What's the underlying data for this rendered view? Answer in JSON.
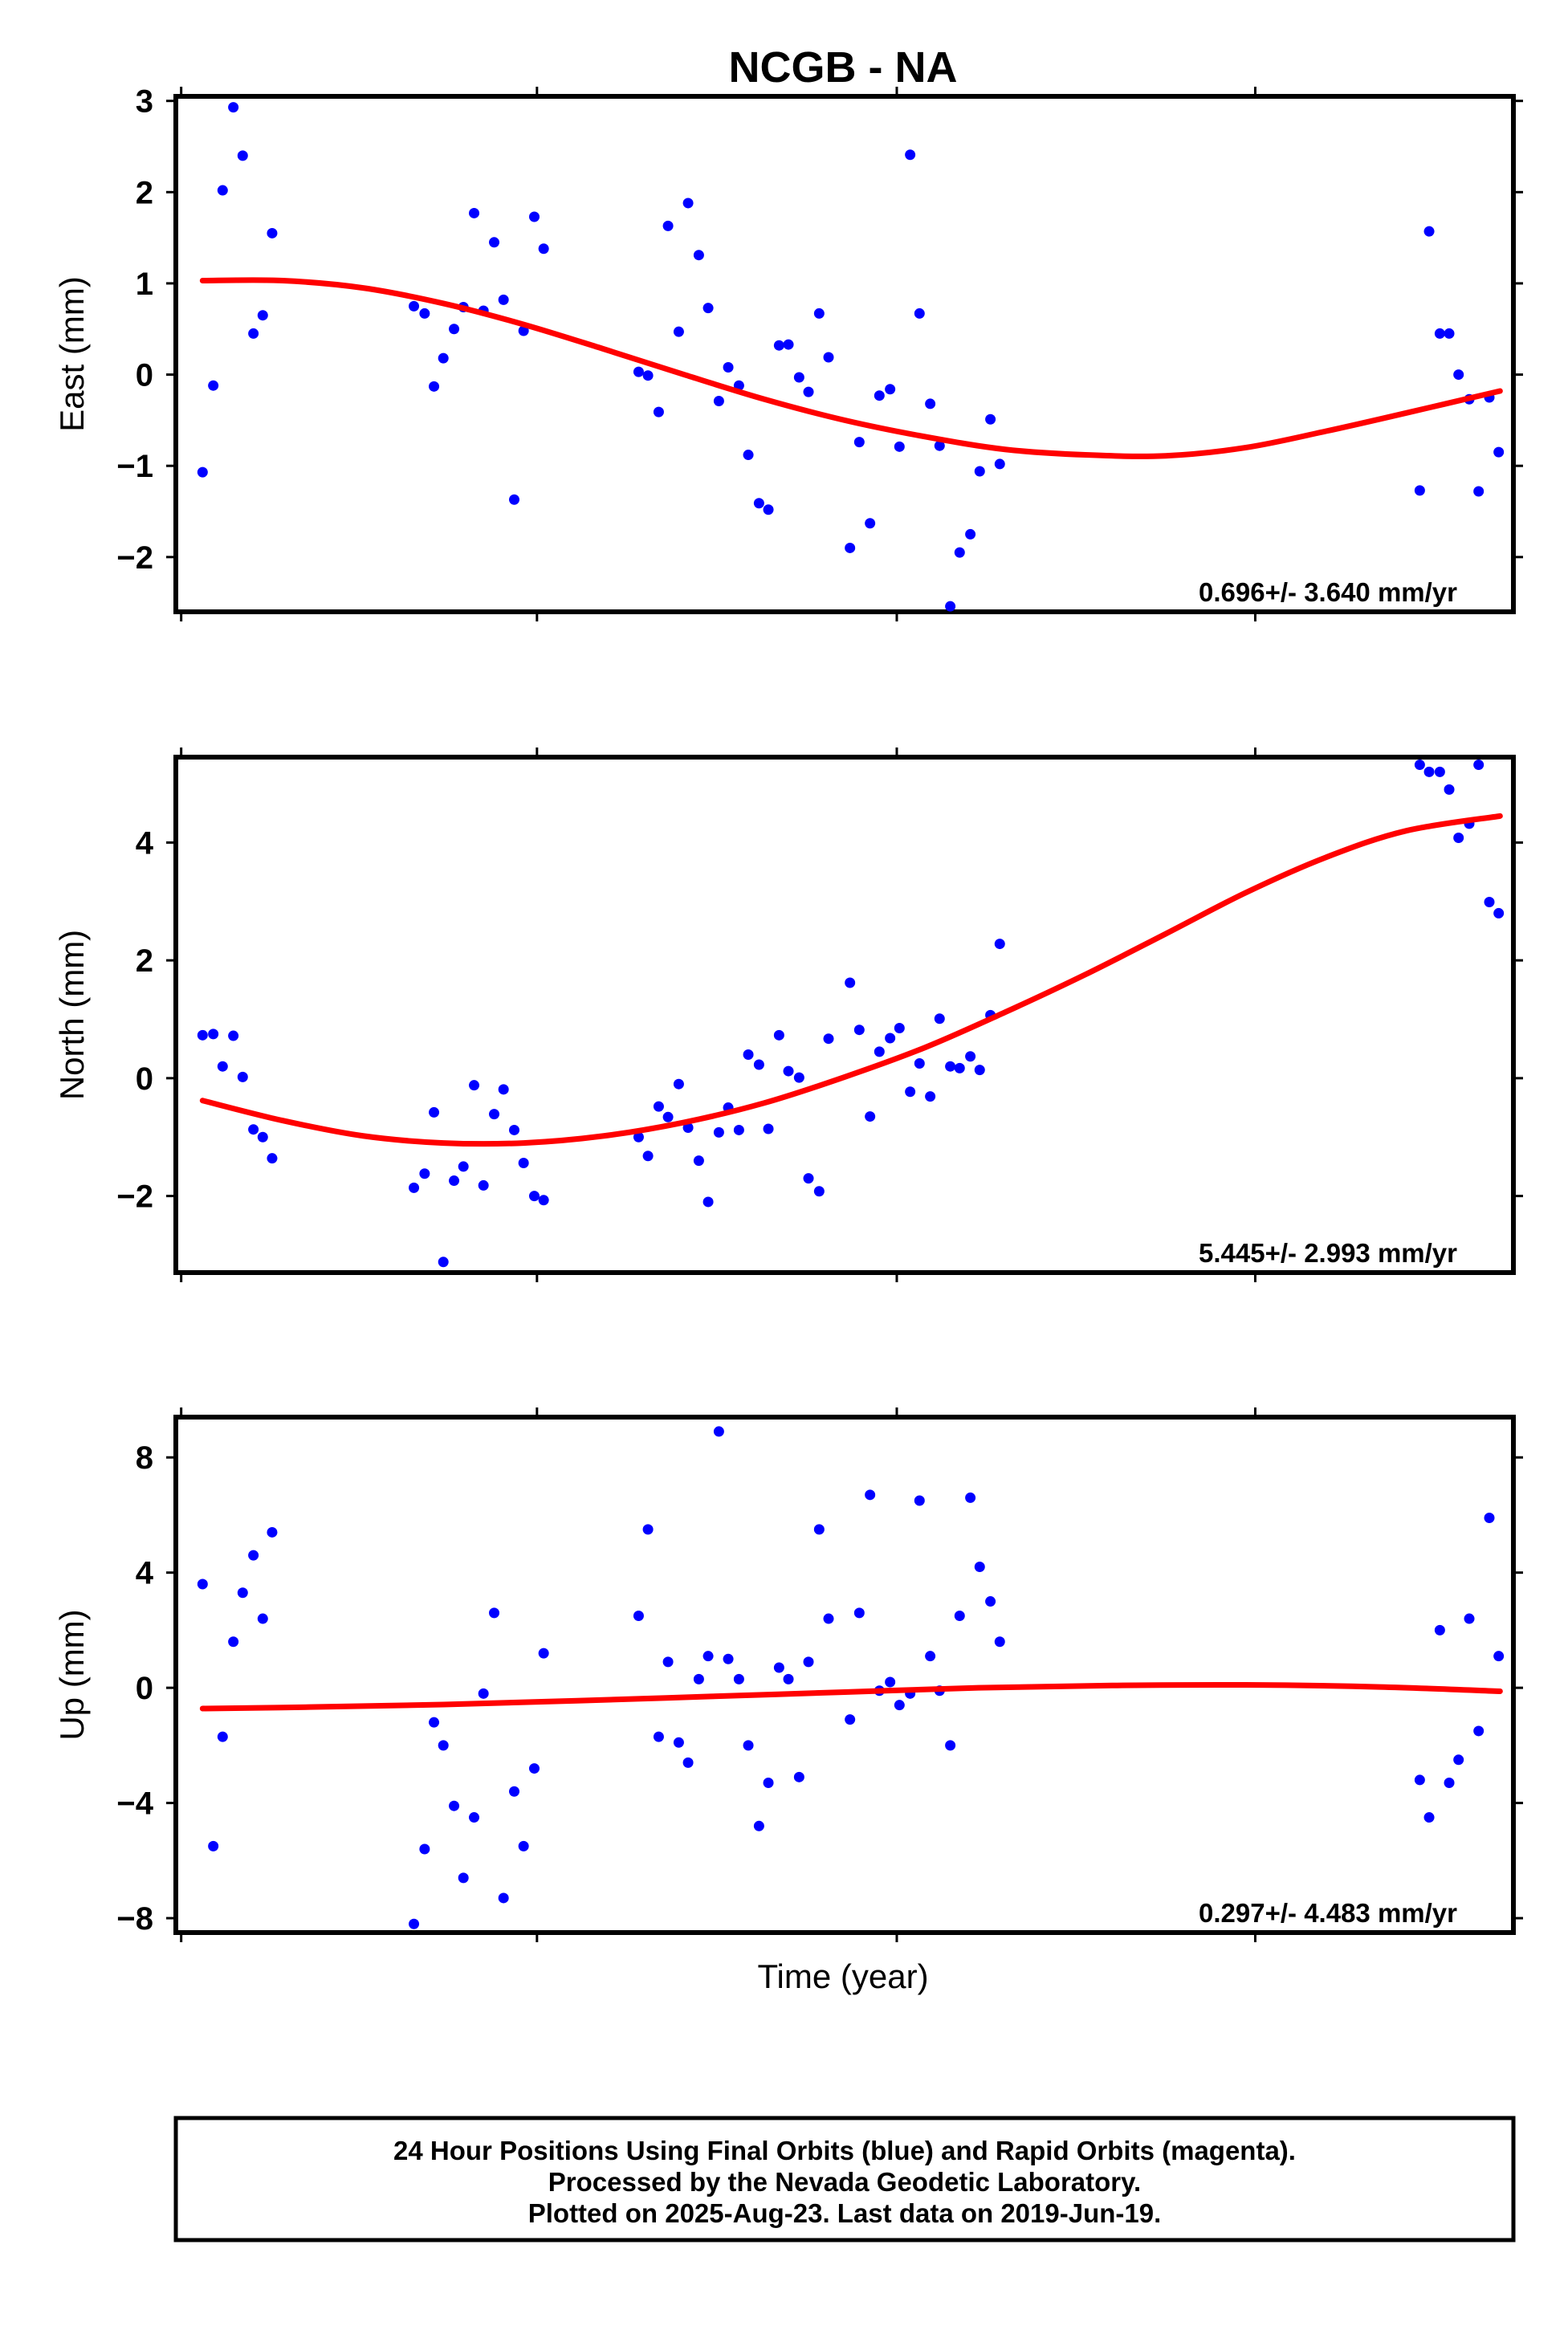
{
  "title": "NCGB - NA",
  "xlabel": "Time (year)",
  "footer": [
    "24 Hour Positions Using Final Orbits (blue) and Rapid Orbits (magenta).",
    "Processed by the Nevada Geodetic Laboratory.",
    "Plotted on 2025-Aug-23. Last data on 2019-Jun-19."
  ],
  "colors": {
    "points": "#0000ff",
    "fit": "#ff0000",
    "frame": "#000000"
  },
  "chart_data": [
    {
      "type": "scatter",
      "ylabel": "East (mm)",
      "ylim": [
        -2.6,
        3.05
      ],
      "yticks": [
        3,
        2,
        1,
        0,
        -1,
        -2
      ],
      "yticklabels": [
        "3",
        "2",
        "1",
        "0",
        "−1",
        "−2"
      ],
      "rate_label": "0.696+/- 3.640 mm/yr",
      "x": [
        0.02,
        0.028,
        0.035,
        0.043,
        0.05,
        0.058,
        0.065,
        0.072,
        0.178,
        0.186,
        0.193,
        0.2,
        0.208,
        0.215,
        0.223,
        0.23,
        0.238,
        0.245,
        0.253,
        0.26,
        0.268,
        0.275,
        0.346,
        0.353,
        0.361,
        0.368,
        0.376,
        0.383,
        0.391,
        0.398,
        0.406,
        0.413,
        0.421,
        0.428,
        0.436,
        0.443,
        0.451,
        0.458,
        0.466,
        0.473,
        0.481,
        0.488,
        0.504,
        0.511,
        0.519,
        0.526,
        0.534,
        0.541,
        0.549,
        0.556,
        0.564,
        0.571,
        0.579,
        0.586,
        0.594,
        0.601,
        0.609,
        0.616,
        0.93,
        0.937,
        0.945,
        0.952,
        0.959,
        0.967,
        0.974,
        0.982,
        0.989
      ],
      "y": [
        -1.07,
        -0.12,
        2.02,
        2.93,
        2.4,
        0.45,
        0.65,
        1.55,
        0.75,
        0.67,
        -0.13,
        0.18,
        0.5,
        0.74,
        1.77,
        0.7,
        1.45,
        0.82,
        -1.37,
        0.48,
        1.73,
        1.38,
        0.03,
        -0.01,
        -0.41,
        1.63,
        0.47,
        1.88,
        1.31,
        0.73,
        -0.29,
        0.08,
        -0.12,
        -0.88,
        -1.41,
        -1.48,
        0.32,
        0.33,
        -0.03,
        -0.19,
        0.67,
        0.19,
        -1.9,
        -0.74,
        -1.63,
        -0.23,
        -0.16,
        -0.79,
        2.41,
        0.67,
        -0.32,
        -0.78,
        -2.54,
        -1.95,
        -1.75,
        -1.06,
        -0.49,
        -0.98,
        -1.27,
        1.57,
        0.45,
        0.45,
        0.0,
        -0.27,
        -1.28,
        -0.25,
        -0.85
      ],
      "fit": {
        "x": [
          0.02,
          0.08,
          0.14,
          0.2,
          0.26,
          0.32,
          0.38,
          0.44,
          0.5,
          0.56,
          0.62,
          0.68,
          0.74,
          0.8,
          0.86,
          0.92,
          0.99
        ],
        "y": [
          1.03,
          1.03,
          0.95,
          0.78,
          0.55,
          0.28,
          0.0,
          -0.27,
          -0.5,
          -0.68,
          -0.82,
          -0.88,
          -0.89,
          -0.8,
          -0.62,
          -0.42,
          -0.18
        ]
      }
    },
    {
      "type": "scatter",
      "ylabel": "North (mm)",
      "ylim": [
        -3.3,
        5.45
      ],
      "yticks": [
        4,
        2,
        0,
        -2
      ],
      "yticklabels": [
        "4",
        "2",
        "0",
        "−2"
      ],
      "rate_label": "5.445+/- 2.993 mm/yr",
      "x": [
        0.02,
        0.028,
        0.035,
        0.043,
        0.05,
        0.058,
        0.065,
        0.072,
        0.178,
        0.186,
        0.193,
        0.2,
        0.208,
        0.215,
        0.223,
        0.23,
        0.238,
        0.245,
        0.253,
        0.26,
        0.268,
        0.275,
        0.346,
        0.353,
        0.361,
        0.368,
        0.376,
        0.383,
        0.391,
        0.398,
        0.406,
        0.413,
        0.421,
        0.428,
        0.436,
        0.443,
        0.451,
        0.458,
        0.466,
        0.473,
        0.481,
        0.488,
        0.504,
        0.511,
        0.519,
        0.526,
        0.534,
        0.541,
        0.549,
        0.556,
        0.564,
        0.571,
        0.579,
        0.586,
        0.594,
        0.601,
        0.609,
        0.616,
        0.93,
        0.937,
        0.945,
        0.952,
        0.959,
        0.967,
        0.974,
        0.982,
        0.989
      ],
      "y": [
        0.73,
        0.75,
        0.2,
        0.72,
        0.02,
        -0.87,
        -1.0,
        -1.36,
        -1.86,
        -1.62,
        -0.58,
        -3.12,
        -1.74,
        -1.5,
        -0.12,
        -1.82,
        -0.61,
        -0.19,
        -0.88,
        -1.44,
        -2.0,
        -2.07,
        -1.0,
        -1.32,
        -0.48,
        -0.66,
        -0.1,
        -0.84,
        -1.4,
        -2.1,
        -0.92,
        -0.5,
        -0.88,
        0.4,
        0.23,
        -0.86,
        0.73,
        0.12,
        0.01,
        -1.7,
        -1.92,
        0.67,
        1.62,
        0.82,
        -0.65,
        0.45,
        0.68,
        0.85,
        -0.23,
        0.25,
        -0.31,
        1.01,
        0.2,
        0.17,
        0.37,
        0.14,
        1.07,
        2.28,
        5.32,
        5.2,
        5.2,
        4.9,
        4.08,
        4.32,
        5.32,
        2.99,
        2.8
      ],
      "fit": {
        "x": [
          0.02,
          0.08,
          0.14,
          0.2,
          0.26,
          0.32,
          0.38,
          0.44,
          0.5,
          0.56,
          0.62,
          0.68,
          0.74,
          0.8,
          0.86,
          0.92,
          0.99
        ],
        "y": [
          -0.38,
          -0.72,
          -0.98,
          -1.1,
          -1.1,
          -0.98,
          -0.75,
          -0.42,
          0.02,
          0.52,
          1.12,
          1.76,
          2.45,
          3.15,
          3.75,
          4.2,
          4.45
        ]
      }
    },
    {
      "type": "scatter",
      "ylabel": "Up (mm)",
      "ylim": [
        -8.5,
        9.4
      ],
      "yticks": [
        8,
        4,
        0,
        -4,
        -8
      ],
      "yticklabels": [
        "8",
        "4",
        "0",
        "−4",
        "−8"
      ],
      "rate_label": "0.297+/- 4.483 mm/yr",
      "x": [
        0.02,
        0.028,
        0.035,
        0.043,
        0.05,
        0.058,
        0.065,
        0.072,
        0.178,
        0.186,
        0.193,
        0.2,
        0.208,
        0.215,
        0.223,
        0.23,
        0.238,
        0.245,
        0.253,
        0.26,
        0.268,
        0.275,
        0.346,
        0.353,
        0.361,
        0.368,
        0.376,
        0.383,
        0.391,
        0.398,
        0.406,
        0.413,
        0.421,
        0.428,
        0.436,
        0.443,
        0.451,
        0.458,
        0.466,
        0.473,
        0.481,
        0.488,
        0.504,
        0.511,
        0.519,
        0.526,
        0.534,
        0.541,
        0.549,
        0.556,
        0.564,
        0.571,
        0.579,
        0.586,
        0.594,
        0.601,
        0.609,
        0.616,
        0.93,
        0.937,
        0.945,
        0.952,
        0.959,
        0.967,
        0.974,
        0.982,
        0.989
      ],
      "y": [
        3.6,
        -5.5,
        -1.7,
        1.6,
        3.3,
        4.6,
        2.4,
        5.4,
        -8.2,
        -5.6,
        -1.2,
        -2.0,
        -4.1,
        -6.6,
        -4.5,
        -0.2,
        2.6,
        -7.3,
        -3.6,
        -5.5,
        -2.8,
        1.2,
        2.5,
        5.5,
        -1.7,
        0.9,
        -1.9,
        -2.6,
        0.3,
        1.1,
        8.9,
        1.0,
        0.3,
        -2.0,
        -4.8,
        -3.3,
        0.7,
        0.3,
        -3.1,
        0.9,
        5.5,
        2.4,
        -1.1,
        2.6,
        6.7,
        -0.1,
        0.2,
        -0.6,
        -0.2,
        6.5,
        1.1,
        -0.1,
        -2.0,
        2.5,
        6.6,
        4.2,
        3.0,
        1.6,
        -3.2,
        -4.5,
        2.0,
        -3.3,
        -2.5,
        2.4,
        -1.5,
        5.9,
        1.1
      ],
      "fit": {
        "x": [
          0.02,
          0.1,
          0.2,
          0.3,
          0.4,
          0.5,
          0.6,
          0.7,
          0.8,
          0.9,
          0.99
        ],
        "y": [
          -0.72,
          -0.67,
          -0.58,
          -0.45,
          -0.3,
          -0.15,
          0.0,
          0.08,
          0.1,
          0.03,
          -0.12
        ]
      }
    }
  ]
}
